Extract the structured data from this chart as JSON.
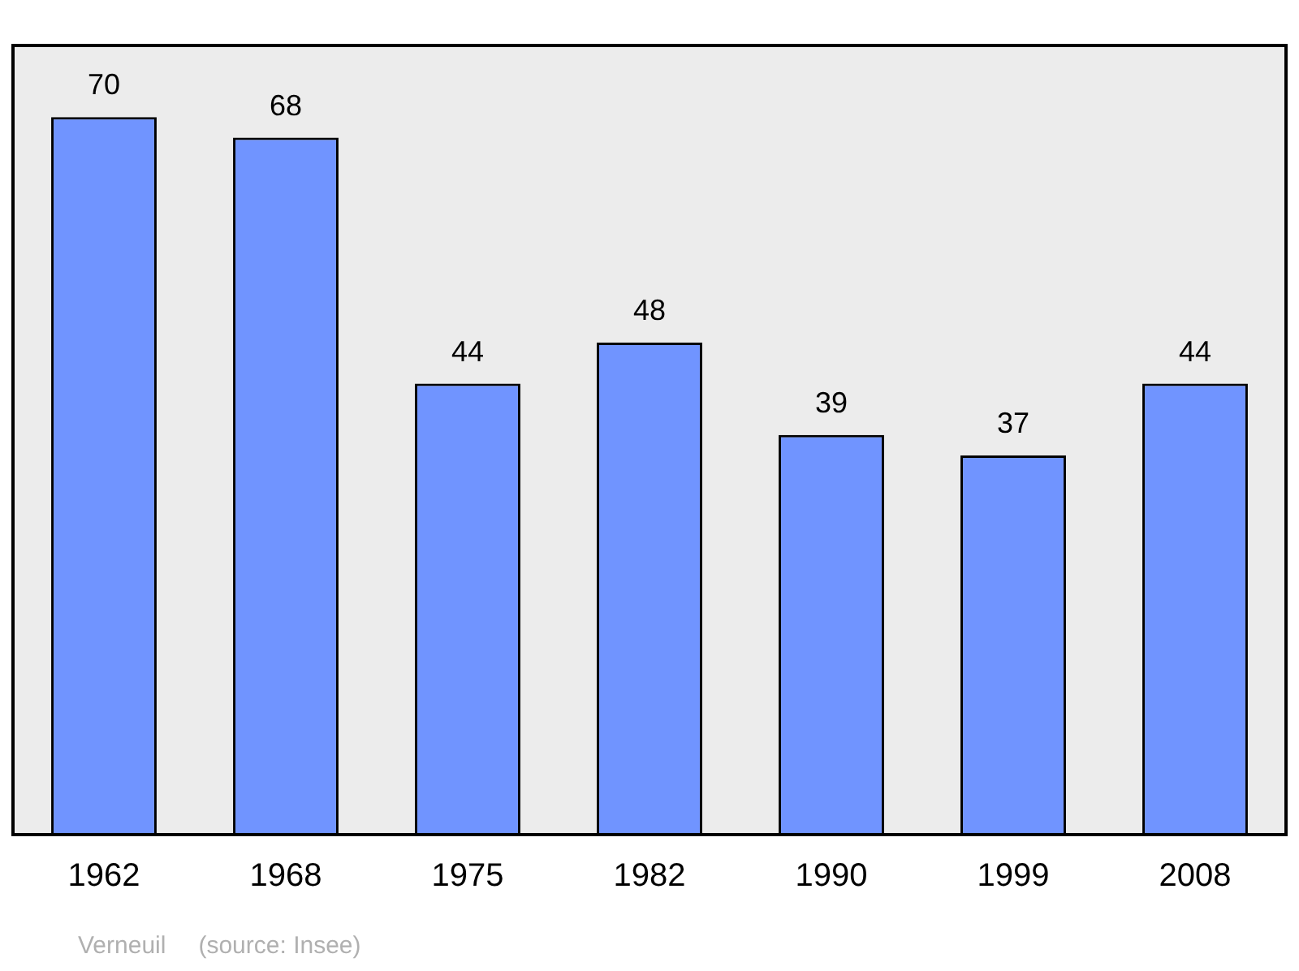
{
  "chart_data": {
    "type": "bar",
    "categories": [
      "1962",
      "1968",
      "1975",
      "1982",
      "1990",
      "1999",
      "2008"
    ],
    "values": [
      70,
      68,
      44,
      48,
      39,
      37,
      44
    ],
    "color": "#7094ff",
    "ylim": [
      0,
      77
    ],
    "data_labels": true,
    "grid": false,
    "legend": false,
    "annotations": [
      "Verneuil",
      "(source: Insee)"
    ]
  }
}
